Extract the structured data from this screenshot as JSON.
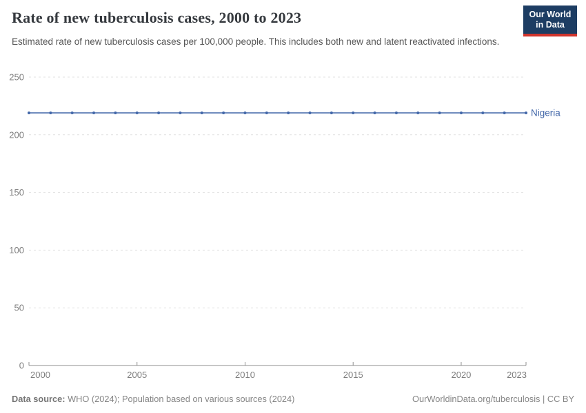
{
  "header": {
    "title": "Rate of new tuberculosis cases, 2000 to 2023",
    "subtitle": "Estimated rate of new tuberculosis cases per 100,000 people. This includes both new and latent reactivated infections.",
    "logo": {
      "line1": "Our World",
      "line2": "in Data"
    }
  },
  "chart_data": {
    "type": "line",
    "title": "Rate of new tuberculosis cases, 2000 to 2023",
    "x": [
      2000,
      2001,
      2002,
      2003,
      2004,
      2005,
      2006,
      2007,
      2008,
      2009,
      2010,
      2011,
      2012,
      2013,
      2014,
      2015,
      2016,
      2017,
      2018,
      2019,
      2020,
      2021,
      2022,
      2023
    ],
    "series": [
      {
        "name": "Nigeria",
        "color": "#4166a8",
        "values": [
          219,
          219,
          219,
          219,
          219,
          219,
          219,
          219,
          219,
          219,
          219,
          219,
          219,
          219,
          219,
          219,
          219,
          219,
          219,
          219,
          219,
          219,
          219,
          219
        ]
      }
    ],
    "xlabel": "",
    "ylabel": "",
    "ylim": [
      0,
      250
    ],
    "yticks": [
      0,
      50,
      100,
      150,
      200,
      250
    ],
    "xticks": [
      2000,
      2005,
      2010,
      2015,
      2020,
      2023
    ],
    "grid": "horizontal-dashed",
    "legend": "end-of-line-label"
  },
  "footer": {
    "source_label": "Data source:",
    "source_text": " WHO (2024); Population based on various sources (2024)",
    "link_text": "OurWorldinData.org/tuberculosis | CC BY"
  },
  "colors": {
    "line": "#4166a8",
    "grid": "#e1e1e1",
    "axis": "#8f8f8f",
    "tick_label": "#7d7d7d",
    "logo_bg": "#1d3d63",
    "logo_accent": "#d0342c",
    "title_text": "#35393e",
    "subtitle_text": "#565656",
    "footer_text": "#858585"
  }
}
